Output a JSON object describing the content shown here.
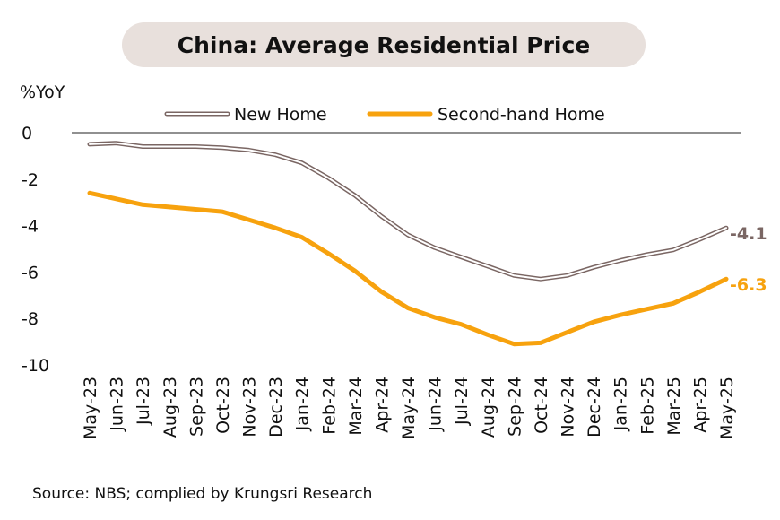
{
  "title": "China: Average Residential Price",
  "source": "Source: NBS; complied by Krungsri Research",
  "chart_data": {
    "type": "line",
    "ylabel": "%YoY",
    "ylim": [
      -10,
      0
    ],
    "yticks": [
      0,
      -2,
      -4,
      -6,
      -8,
      -10
    ],
    "categories": [
      "May-23",
      "Jun-23",
      "Jul-23",
      "Aug-23",
      "Sep-23",
      "Oct-23",
      "Nov-23",
      "Dec-23",
      "Jan-24",
      "Feb-24",
      "Mar-24",
      "Apr-24",
      "May-24",
      "Jun-24",
      "Jul-24",
      "Aug-24",
      "Sep-24",
      "Oct-24",
      "Nov-24",
      "Dec-24",
      "Jan-25",
      "Feb-25",
      "Mar-25",
      "Apr-25",
      "May-25"
    ],
    "series": [
      {
        "name": "New Home",
        "color": "#7a6663",
        "style": "outlined",
        "values": [
          -0.5,
          -0.45,
          -0.6,
          -0.6,
          -0.6,
          -0.65,
          -0.75,
          -0.95,
          -1.3,
          -1.95,
          -2.7,
          -3.6,
          -4.4,
          -4.95,
          -5.35,
          -5.75,
          -6.15,
          -6.3,
          -6.15,
          -5.8,
          -5.5,
          -5.25,
          -5.05,
          -4.6,
          -4.1
        ],
        "end_label": "-4.1"
      },
      {
        "name": "Second-hand Home",
        "color": "#f7a20e",
        "style": "solid",
        "values": [
          -2.6,
          -2.85,
          -3.1,
          -3.2,
          -3.3,
          -3.4,
          -3.75,
          -4.1,
          -4.5,
          -5.2,
          -5.95,
          -6.85,
          -7.55,
          -7.95,
          -8.25,
          -8.7,
          -9.1,
          -9.05,
          -8.6,
          -8.15,
          -7.85,
          -7.6,
          -7.35,
          -6.85,
          -6.3
        ],
        "end_label": "-6.3"
      }
    ],
    "legend_position": "top",
    "grid": false
  }
}
